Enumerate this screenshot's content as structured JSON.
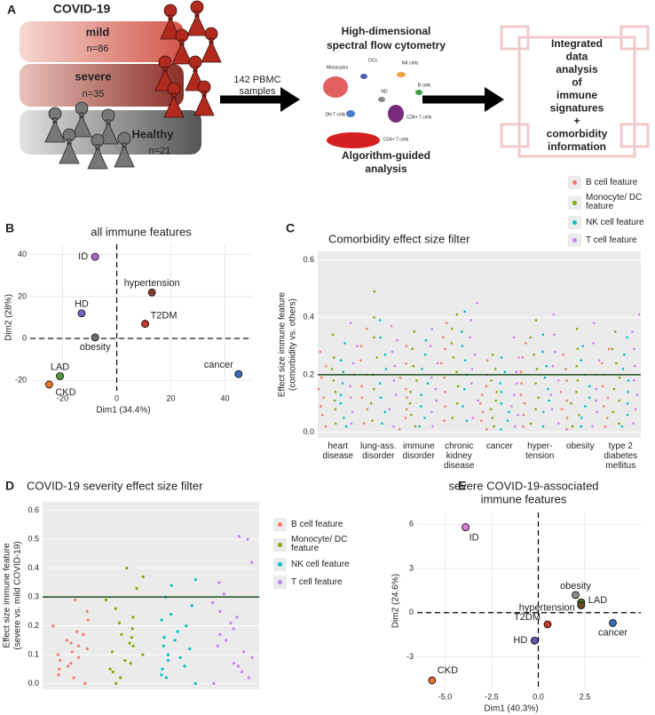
{
  "panel_labels": [
    "A",
    "B",
    "C",
    "D",
    "E"
  ],
  "overview": {
    "cohort_title": "COVID-19",
    "groups": [
      {
        "name": "mild",
        "n": "n=86"
      },
      {
        "name": "severe",
        "n": "n=35"
      },
      {
        "name": "Healthy",
        "n": "n=21"
      }
    ],
    "samples": [
      "142 PBMC",
      "samples"
    ],
    "method_title": [
      "High-dimensional",
      "spectral flow cytometry"
    ],
    "clusters": [
      "Monocytes",
      "DCs",
      "NK cells",
      "B cells",
      "ND",
      "DN T cells",
      "CD8+ T cells",
      "CD4+ T cells"
    ],
    "method_subtitle": [
      "Algorithm-guided",
      "analysis"
    ],
    "outcome": [
      "Integrated",
      "data",
      "analysis",
      "of",
      "immune",
      "signatures",
      "+",
      "comorbidity",
      "information"
    ]
  },
  "chart_data": [
    {
      "type": "scatter",
      "title": [
        "all immune features"
      ],
      "xlabel": "Dim1 (34.4%)",
      "ylabel": [
        "Dim2 (28%)"
      ],
      "xlim": [
        -32,
        50
      ],
      "ylim": [
        -25,
        45
      ],
      "xticks": [
        -20,
        0,
        20,
        40
      ],
      "yticks": [
        -20,
        0,
        20,
        40
      ],
      "reference_lines": {
        "x": 0,
        "y": 0
      },
      "grid": true,
      "background": "#ffffff",
      "points": [
        {
          "label": "ID",
          "x": -8,
          "y": 39,
          "color": "#b266d6"
        },
        {
          "label": "hypertension",
          "x": 13,
          "y": 22,
          "color": "#8b3b2a"
        },
        {
          "label": "HD",
          "x": -13,
          "y": 12,
          "color": "#7a66c8"
        },
        {
          "label": "T2DM",
          "x": 10.5,
          "y": 7,
          "color": "#c0392b"
        },
        {
          "label": "obesity",
          "x": -8,
          "y": 0.5,
          "color": "#6e6e6e"
        },
        {
          "label": "LAD",
          "x": -21,
          "y": -18,
          "color": "#4f9a3c"
        },
        {
          "label": "CKD",
          "x": -25,
          "y": -22,
          "color": "#e6762b"
        },
        {
          "label": "cancer",
          "x": 45,
          "y": -17,
          "color": "#3b6bb5"
        }
      ]
    },
    {
      "type": "strip",
      "title": [
        "Comorbidity effect size filter"
      ],
      "ylabel": [
        "Effect size immune feature",
        "(comorbidity vs. others)"
      ],
      "ylim": [
        -0.02,
        0.63
      ],
      "yticks": [
        {
          "value": 0,
          "label": "0.0"
        },
        0.2,
        0.4,
        0.6
      ],
      "threshold": 0.2,
      "threshold_color": "#1f4d1f",
      "grid": true,
      "background": "#ebebeb",
      "legend": "top-right",
      "categories": [
        "heart disease",
        "lung-ass. disorder",
        "immune disorder",
        "chronic kidney disease",
        "cancer",
        "hyper-tension",
        "obesity",
        "type 2 diabetes mellitus"
      ],
      "series": [
        {
          "name": "B cell feature",
          "color": "#f8766d",
          "values": [
            [
              0.02,
              0.06,
              0.09,
              0.12,
              0.15,
              0.19,
              0.23,
              0.28
            ],
            [
              0.03,
              0.08,
              0.12,
              0.16,
              0.2,
              0.25,
              0.3,
              0.36
            ],
            [
              0.01,
              0.05,
              0.08,
              0.12,
              0.15,
              0.19,
              0.24,
              0.3
            ],
            [
              0.04,
              0.09,
              0.14,
              0.19,
              0.24,
              0.29,
              0.33,
              0.38
            ],
            [
              0.01,
              0.04,
              0.07,
              0.1,
              0.13,
              0.16,
              0.2,
              0.25
            ],
            [
              0.02,
              0.06,
              0.1,
              0.13,
              0.17,
              0.21,
              0.26,
              0.31
            ],
            [
              0.01,
              0.05,
              0.08,
              0.11,
              0.14,
              0.18,
              0.22,
              0.27
            ],
            [
              0.02,
              0.05,
              0.09,
              0.12,
              0.16,
              0.2,
              0.24,
              0.29
            ]
          ]
        },
        {
          "name": "Monocyte/ DC feature",
          "color": "#7cae00",
          "values": [
            [
              0.03,
              0.08,
              0.11,
              0.14,
              0.18,
              0.22,
              0.26,
              0.34
            ],
            [
              0.04,
              0.1,
              0.15,
              0.2,
              0.26,
              0.33,
              0.4,
              0.49
            ],
            [
              0.02,
              0.06,
              0.1,
              0.14,
              0.18,
              0.23,
              0.29,
              0.35
            ],
            [
              0.05,
              0.1,
              0.16,
              0.21,
              0.26,
              0.31,
              0.36,
              0.41
            ],
            [
              0.02,
              0.05,
              0.08,
              0.11,
              0.14,
              0.18,
              0.22,
              0.27
            ],
            [
              0.03,
              0.08,
              0.12,
              0.17,
              0.22,
              0.27,
              0.33,
              0.39
            ],
            [
              0.02,
              0.06,
              0.1,
              0.14,
              0.18,
              0.23,
              0.29,
              0.36
            ],
            [
              0.03,
              0.07,
              0.11,
              0.15,
              0.19,
              0.24,
              0.29,
              0.35
            ]
          ]
        },
        {
          "name": "NK cell feature",
          "color": "#00bfc4",
          "values": [
            [
              0.02,
              0.05,
              0.1,
              0.13,
              0.17,
              0.21,
              0.25,
              0.31
            ],
            [
              0.03,
              0.07,
              0.12,
              0.17,
              0.22,
              0.27,
              0.33,
              0.39
            ],
            [
              0.02,
              0.05,
              0.09,
              0.13,
              0.17,
              0.22,
              0.27,
              0.32
            ],
            [
              0.04,
              0.09,
              0.15,
              0.2,
              0.25,
              0.3,
              0.35,
              0.42
            ],
            [
              0.01,
              0.04,
              0.07,
              0.1,
              0.14,
              0.17,
              0.21,
              0.26
            ],
            [
              0.02,
              0.07,
              0.11,
              0.15,
              0.19,
              0.23,
              0.28,
              0.34
            ],
            [
              0.02,
              0.05,
              0.09,
              0.12,
              0.16,
              0.2,
              0.25,
              0.3
            ],
            [
              0.02,
              0.06,
              0.1,
              0.14,
              0.18,
              0.22,
              0.27,
              0.33
            ]
          ]
        },
        {
          "name": "T cell feature",
          "color": "#c77cff",
          "values": [
            [
              0.03,
              0.07,
              0.12,
              0.16,
              0.2,
              0.24,
              0.3,
              0.38
            ],
            [
              0.02,
              0.08,
              0.13,
              0.18,
              0.23,
              0.28,
              0.32,
              0.37
            ],
            [
              0.02,
              0.07,
              0.11,
              0.15,
              0.19,
              0.24,
              0.3,
              0.36
            ],
            [
              0.05,
              0.11,
              0.17,
              0.22,
              0.27,
              0.33,
              0.39,
              0.45
            ],
            [
              0.02,
              0.06,
              0.09,
              0.13,
              0.17,
              0.21,
              0.26,
              0.33
            ],
            [
              0.03,
              0.08,
              0.13,
              0.18,
              0.23,
              0.28,
              0.34,
              0.41
            ],
            [
              0.02,
              0.07,
              0.11,
              0.15,
              0.2,
              0.25,
              0.31,
              0.38
            ],
            [
              0.03,
              0.08,
              0.13,
              0.18,
              0.23,
              0.29,
              0.35,
              0.41
            ]
          ]
        }
      ]
    },
    {
      "type": "strip",
      "title": [
        "COVID-19 severity effect size filter"
      ],
      "ylabel": [
        "Effect size immune feature",
        "(severe vs. mild COVID-19)"
      ],
      "ylim": [
        -0.02,
        0.63
      ],
      "yticks": [
        {
          "value": 0,
          "label": "0.0"
        },
        0.1,
        0.2,
        0.3,
        0.4,
        0.5,
        0.6
      ],
      "threshold": 0.3,
      "threshold_color": "#1f4d1f",
      "grid": true,
      "background": "#ebebeb",
      "legend": "right",
      "series": [
        {
          "name": "B cell feature",
          "color": "#f8766d",
          "values": [
            0.0,
            0.02,
            0.03,
            0.05,
            0.06,
            0.07,
            0.08,
            0.09,
            0.1,
            0.11,
            0.12,
            0.13,
            0.14,
            0.15,
            0.17,
            0.18,
            0.2,
            0.22,
            0.25,
            0.29
          ]
        },
        {
          "name": "Monocyte/ DC feature",
          "color": "#7cae00",
          "values": [
            0.0,
            0.02,
            0.04,
            0.05,
            0.07,
            0.08,
            0.1,
            0.11,
            0.13,
            0.14,
            0.16,
            0.17,
            0.19,
            0.21,
            0.23,
            0.26,
            0.29,
            0.33,
            0.37,
            0.4
          ]
        },
        {
          "name": "NK cell feature",
          "color": "#00bfc4",
          "values": [
            0.0,
            0.02,
            0.03,
            0.05,
            0.06,
            0.08,
            0.09,
            0.1,
            0.12,
            0.13,
            0.15,
            0.16,
            0.18,
            0.2,
            0.22,
            0.24,
            0.27,
            0.3,
            0.34,
            0.36
          ]
        },
        {
          "name": "T cell feature",
          "color": "#c77cff",
          "values": [
            0.0,
            0.02,
            0.04,
            0.06,
            0.07,
            0.09,
            0.11,
            0.13,
            0.15,
            0.17,
            0.19,
            0.21,
            0.23,
            0.25,
            0.28,
            0.31,
            0.35,
            0.42,
            0.5,
            0.51
          ]
        }
      ]
    },
    {
      "type": "scatter",
      "title": [
        "severe COVID-19-associated",
        "immune features"
      ],
      "xlabel": "Dim1 (40.3%)",
      "ylabel": [
        "Dim2 (24.6%)"
      ],
      "xlim": [
        -6.5,
        5.5
      ],
      "ylim": [
        -5.2,
        6.8
      ],
      "xticks": [
        {
          "value": -5,
          "label": "-5.0"
        },
        {
          "value": -2.5,
          "label": "-2.5"
        },
        {
          "value": 0,
          "label": "0.0"
        },
        {
          "value": 2.5,
          "label": "2.5"
        }
      ],
      "yticks": [
        -3,
        0,
        3,
        6
      ],
      "reference_lines": {
        "x": 0,
        "y": 0
      },
      "grid": true,
      "background": "#ffffff",
      "points": [
        {
          "label": "ID",
          "x": -3.9,
          "y": 5.8,
          "color": "#d580d0"
        },
        {
          "label": "obesity",
          "x": 2.0,
          "y": 1.2,
          "color": "#8c8c8c"
        },
        {
          "label": "LAD",
          "x": 2.3,
          "y": 0.7,
          "color": "#4d7a2b"
        },
        {
          "label": "hypertension",
          "x": 2.3,
          "y": 0.5,
          "color": "#6b4e1f"
        },
        {
          "label": "T2DM",
          "x": 0.5,
          "y": -0.8,
          "color": "#c0392b"
        },
        {
          "label": "cancer",
          "x": 4.0,
          "y": -0.7,
          "color": "#3b6bb5"
        },
        {
          "label": "HD",
          "x": -0.2,
          "y": -1.9,
          "color": "#6a55b5"
        },
        {
          "label": "CKD",
          "x": -5.7,
          "y": -4.6,
          "color": "#e0712c"
        }
      ]
    }
  ]
}
